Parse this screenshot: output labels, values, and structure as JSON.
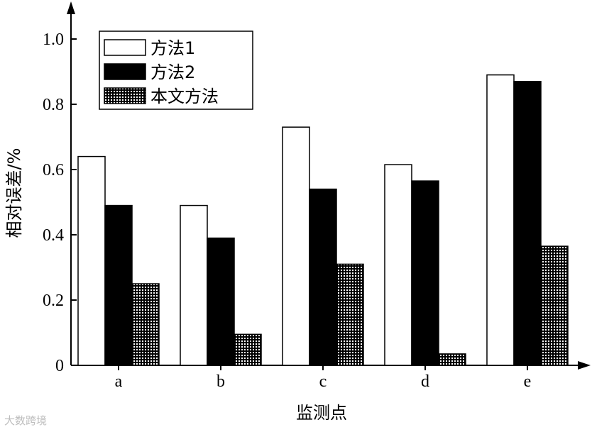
{
  "chart_data": {
    "type": "bar",
    "title": "",
    "xlabel": "监测点",
    "ylabel": "相对误差/%",
    "categories": [
      "a",
      "b",
      "c",
      "d",
      "e"
    ],
    "series": [
      {
        "name": "方法1",
        "fill": "white",
        "values": [
          0.64,
          0.49,
          0.73,
          0.615,
          0.89
        ]
      },
      {
        "name": "方法2",
        "fill": "black",
        "values": [
          0.49,
          0.39,
          0.54,
          0.565,
          0.87
        ]
      },
      {
        "name": "本文方法",
        "fill": "dotted",
        "values": [
          0.25,
          0.095,
          0.31,
          0.035,
          0.365
        ]
      }
    ],
    "ylim": [
      0,
      1.0
    ],
    "yticks": [
      "0",
      "0.2",
      "0.4",
      "0.6",
      "0.8",
      "1.0"
    ],
    "grid": false,
    "legend_position": "top-left"
  },
  "watermark": "大数跨境",
  "colors": {
    "bar_outline": "#000000",
    "solid_fill": "#000000",
    "axis": "#000000"
  }
}
